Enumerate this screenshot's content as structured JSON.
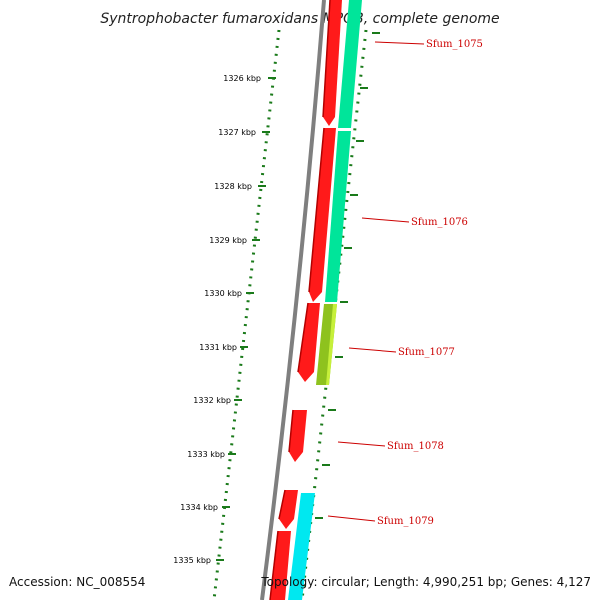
{
  "title": "Syntrophobacter fumaroxidans MPOB, complete genome",
  "ticks": [
    "1326 kbp",
    "1327 kbp",
    "1328 kbp",
    "1329 kbp",
    "1330 kbp",
    "1331 kbp",
    "1332 kbp",
    "1333 kbp",
    "1334 kbp",
    "1335 kbp"
  ],
  "genes": [
    "Sfum_1075",
    "Sfum_1076",
    "Sfum_1077",
    "Sfum_1078",
    "Sfum_1079"
  ],
  "footer": {
    "accession": "Accession: NC_008554",
    "topology": "Topology: circular; Length: 4,990,251 bp; Genes: 4,127"
  },
  "colors": {
    "cds": "#ff1a1a",
    "cds_dark": "#b30000",
    "feature_teal": "#00e59a",
    "feature_cyan": "#00e8f0",
    "feature_olive": "#8ec21e",
    "tick": "#1a7a1a",
    "backbone": "#808080",
    "label": "#cc0000"
  }
}
